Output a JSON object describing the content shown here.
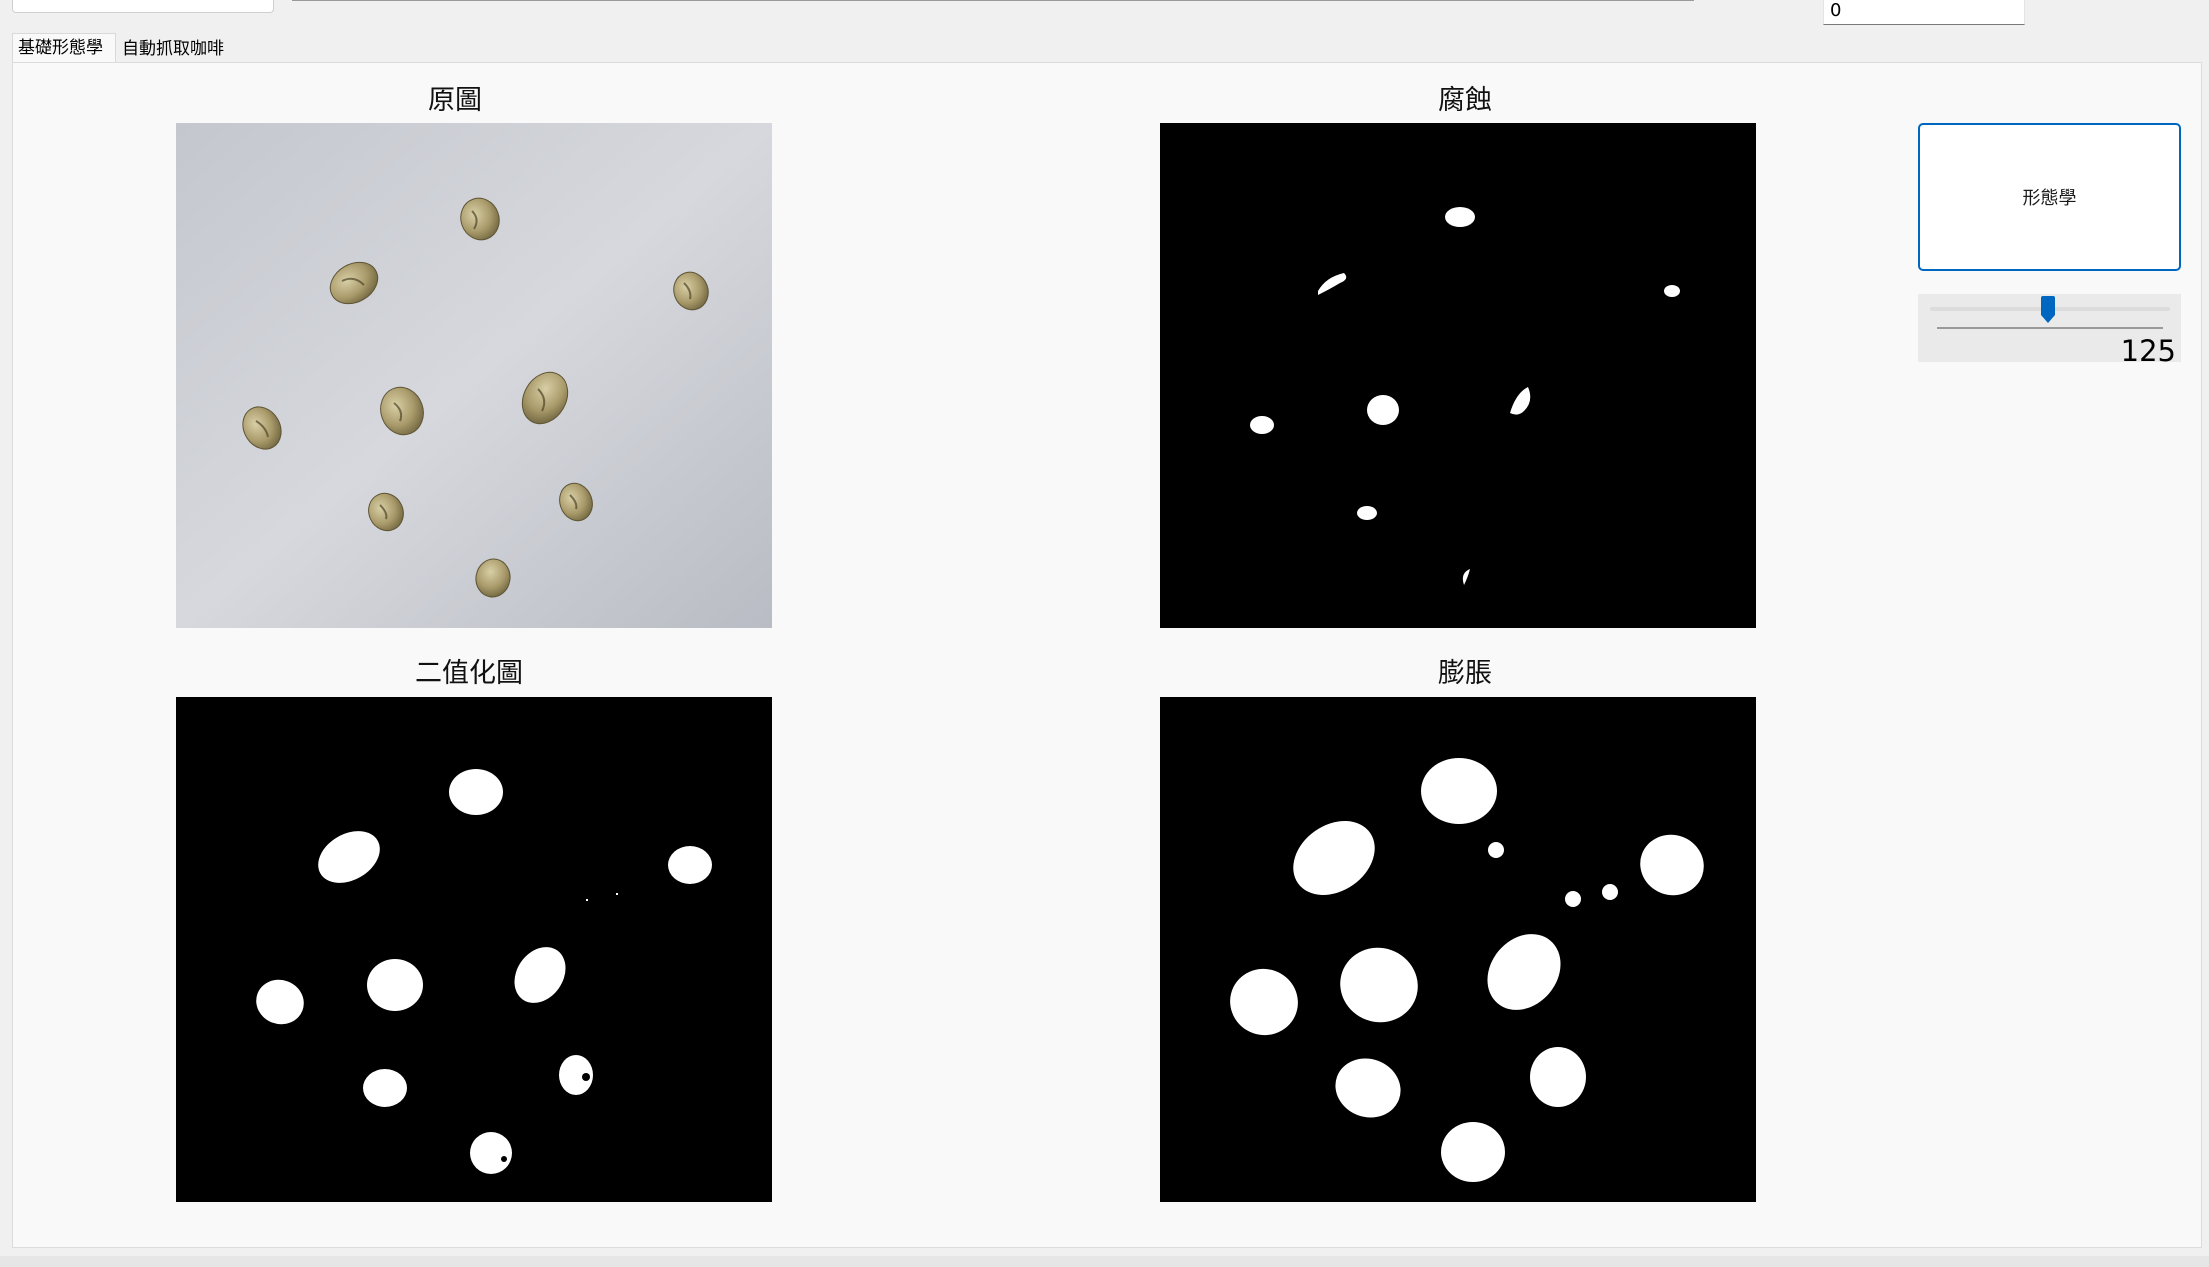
{
  "top_bar": {
    "value_field": "0"
  },
  "tabs": [
    {
      "label": "基礎形態學",
      "active": true
    },
    {
      "label": "自動抓取咖啡",
      "active": false
    }
  ],
  "images": {
    "original": {
      "title": "原圖"
    },
    "erosion": {
      "title": "腐蝕"
    },
    "binary": {
      "title": "二值化圖"
    },
    "dilation": {
      "title": "膨脹"
    }
  },
  "controls": {
    "morph_button_label": "形態學",
    "slider": {
      "value": "125",
      "min": 0,
      "max": 255,
      "fraction": 0.49,
      "accent": "#0067c0"
    }
  },
  "colors": {
    "accent": "#0067c0",
    "panel_bg": "#f9f9f9",
    "window_bg": "#f0f0f0"
  }
}
